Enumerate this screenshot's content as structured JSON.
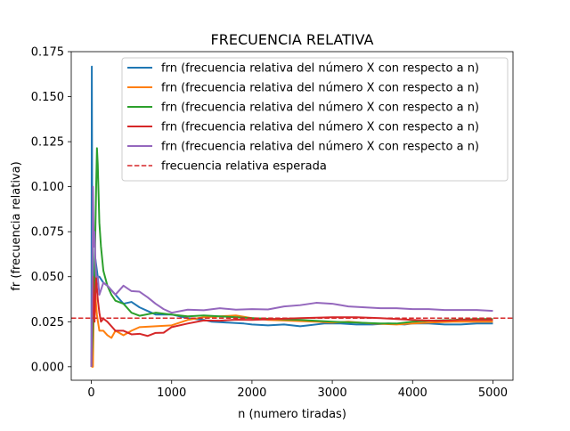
{
  "chart_data": {
    "type": "line",
    "title": "FRECUENCIA RELATIVA",
    "xlabel": "n (numero tiradas)",
    "ylabel": "fr (frecuencia relativa)",
    "xlim": [
      -250,
      5250
    ],
    "ylim": [
      -0.0075,
      0.175
    ],
    "xticks": [
      0,
      1000,
      2000,
      3000,
      4000,
      5000
    ],
    "xtick_labels": [
      "0",
      "1000",
      "2000",
      "3000",
      "4000",
      "5000"
    ],
    "yticks": [
      0.0,
      0.025,
      0.05,
      0.075,
      0.1,
      0.125,
      0.15,
      0.175
    ],
    "ytick_labels": [
      "0.000",
      "0.025",
      "0.050",
      "0.075",
      "0.100",
      "0.125",
      "0.150",
      "0.175"
    ],
    "grid": false,
    "legend_position": "top-right",
    "series": [
      {
        "name": "frn (frecuencia relativa del número X con respecto a n)",
        "color": "#1f77b4",
        "style": "solid",
        "x": [
          1,
          6,
          10,
          20,
          30,
          50,
          80,
          100,
          150,
          200,
          300,
          400,
          500,
          600,
          700,
          800,
          1000,
          1200,
          1400,
          1500,
          1700,
          1900,
          2000,
          2200,
          2400,
          2600,
          2700,
          2900,
          3100,
          3300,
          3500,
          3700,
          3900,
          4000,
          4200,
          4400,
          4600,
          4800,
          5000
        ],
        "y": [
          0.0,
          0.1667,
          0.1,
          0.05,
          0.0333,
          0.06,
          0.05,
          0.05,
          0.0467,
          0.045,
          0.04,
          0.035,
          0.036,
          0.033,
          0.031,
          0.029,
          0.029,
          0.027,
          0.026,
          0.025,
          0.0245,
          0.024,
          0.0235,
          0.023,
          0.0235,
          0.0225,
          0.023,
          0.024,
          0.024,
          0.0235,
          0.0235,
          0.024,
          0.0235,
          0.024,
          0.024,
          0.0235,
          0.0235,
          0.024,
          0.024
        ]
      },
      {
        "name": "frn (frecuencia relativa del número X con respecto a n)",
        "color": "#ff7f0e",
        "style": "solid",
        "x": [
          1,
          20,
          30,
          40,
          50,
          70,
          100,
          150,
          200,
          250,
          300,
          400,
          500,
          600,
          800,
          1000,
          1200,
          1400,
          1600,
          1800,
          2000,
          2200,
          2500,
          2800,
          3000,
          3200,
          3500,
          3800,
          4000,
          4200,
          4500,
          4800,
          5000
        ],
        "y": [
          0.0,
          0.0,
          0.0333,
          0.05,
          0.04,
          0.0286,
          0.02,
          0.02,
          0.0175,
          0.016,
          0.02,
          0.0175,
          0.02,
          0.022,
          0.0225,
          0.023,
          0.026,
          0.0275,
          0.028,
          0.0285,
          0.027,
          0.026,
          0.0255,
          0.025,
          0.0245,
          0.025,
          0.024,
          0.0235,
          0.024,
          0.0245,
          0.025,
          0.025,
          0.025
        ]
      },
      {
        "name": "frn (frecuencia relativa del número X con respecto a n)",
        "color": "#2ca02c",
        "style": "solid",
        "x": [
          1,
          30,
          40,
          60,
          70,
          80,
          100,
          120,
          150,
          200,
          250,
          300,
          400,
          500,
          600,
          800,
          1000,
          1200,
          1400,
          1600,
          1800,
          2000,
          2300,
          2600,
          3000,
          3300,
          3600,
          3800,
          4000,
          4200,
          4500,
          4800,
          5000
        ],
        "y": [
          0.0,
          0.0333,
          0.05,
          0.1,
          0.1214,
          0.1125,
          0.08,
          0.0667,
          0.0533,
          0.045,
          0.04,
          0.0367,
          0.035,
          0.03,
          0.0283,
          0.03,
          0.029,
          0.028,
          0.0285,
          0.028,
          0.0275,
          0.027,
          0.0265,
          0.026,
          0.025,
          0.0245,
          0.024,
          0.024,
          0.025,
          0.0255,
          0.026,
          0.0265,
          0.0265
        ]
      },
      {
        "name": "frn (frecuencia relativa del número X con respecto a n)",
        "color": "#d62728",
        "style": "solid",
        "x": [
          1,
          20,
          30,
          40,
          50,
          60,
          80,
          100,
          120,
          150,
          200,
          300,
          400,
          500,
          600,
          700,
          800,
          900,
          1000,
          1200,
          1400,
          1600,
          1800,
          2000,
          2300,
          2600,
          3000,
          3300,
          3600,
          3800,
          4000,
          4300,
          4600,
          4800,
          5000
        ],
        "y": [
          0.0,
          0.05,
          0.0333,
          0.025,
          0.04,
          0.05,
          0.0375,
          0.03,
          0.025,
          0.0267,
          0.025,
          0.02,
          0.02,
          0.018,
          0.0183,
          0.0171,
          0.0188,
          0.0189,
          0.022,
          0.024,
          0.0257,
          0.0256,
          0.0261,
          0.026,
          0.0265,
          0.027,
          0.0275,
          0.0275,
          0.027,
          0.0265,
          0.026,
          0.0255,
          0.026,
          0.026,
          0.026
        ]
      },
      {
        "name": "frn (frecuencia relativa del número X con respecto a n)",
        "color": "#9467bd",
        "style": "solid",
        "x": [
          1,
          15,
          20,
          30,
          40,
          50,
          60,
          80,
          100,
          150,
          200,
          300,
          400,
          500,
          600,
          700,
          800,
          900,
          1000,
          1200,
          1400,
          1600,
          1800,
          2000,
          2200,
          2400,
          2600,
          2800,
          3000,
          3200,
          3400,
          3600,
          3800,
          4000,
          4200,
          4400,
          4600,
          4800,
          5000
        ],
        "y": [
          0.0,
          0.0667,
          0.1,
          0.0667,
          0.075,
          0.06,
          0.05,
          0.05,
          0.04,
          0.0467,
          0.045,
          0.04,
          0.045,
          0.042,
          0.0417,
          0.0386,
          0.035,
          0.032,
          0.03,
          0.0317,
          0.0314,
          0.0325,
          0.0317,
          0.032,
          0.0318,
          0.0335,
          0.0342,
          0.0355,
          0.035,
          0.0335,
          0.033,
          0.0325,
          0.0325,
          0.032,
          0.032,
          0.0315,
          0.0315,
          0.0315,
          0.031
        ]
      },
      {
        "name": "frecuencia relativa esperada",
        "color": "#d62728",
        "style": "dashed",
        "x": [
          -250,
          5250
        ],
        "y": [
          0.027,
          0.027
        ]
      }
    ]
  }
}
